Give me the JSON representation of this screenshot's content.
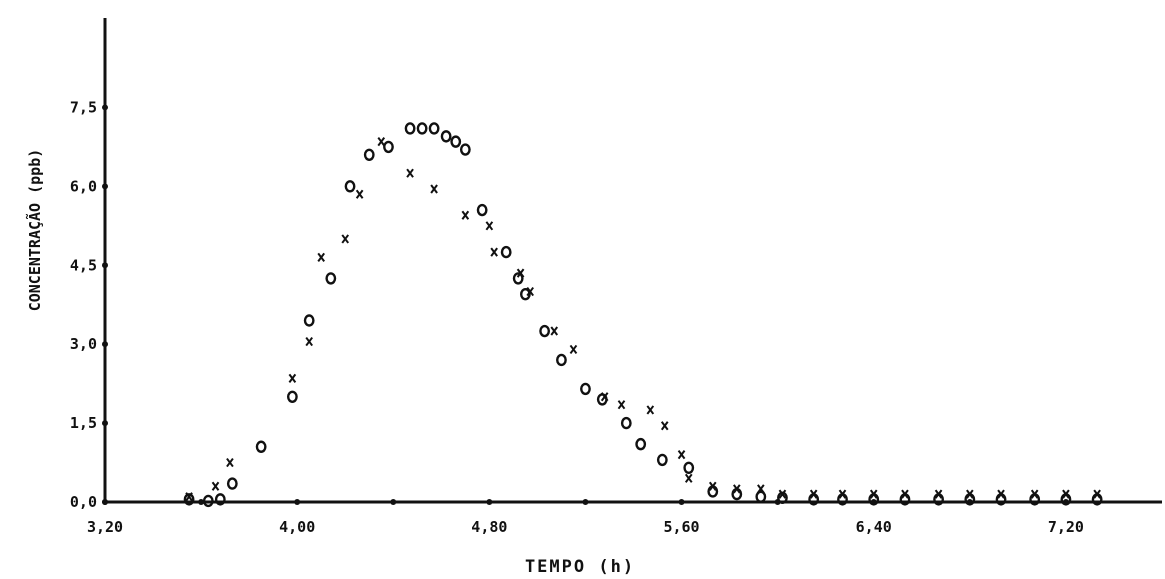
{
  "chart_data": {
    "type": "scatter",
    "title": "",
    "xlabel": "TEMPO (h)",
    "ylabel": "CONCENTRAÇÃO (ppb)",
    "xlim": [
      3.2,
      7.6
    ],
    "ylim": [
      0,
      9.2
    ],
    "x_ticks": [
      3.2,
      3.6,
      4.0,
      4.4,
      4.8,
      5.2,
      5.6,
      6.0,
      6.4,
      6.8,
      7.2
    ],
    "x_tick_labels": [
      "3,20",
      "4,00",
      "4,80",
      "5,60",
      "6,40",
      "7,20"
    ],
    "x_labeled_ticks": [
      3.2,
      4.0,
      4.8,
      5.6,
      6.4,
      7.2
    ],
    "y_ticks": [
      0.0,
      1.5,
      3.0,
      4.5,
      6.0,
      7.5
    ],
    "y_tick_labels": [
      "0,0",
      "1,5",
      "3,0",
      "4,5",
      "6,0",
      "7,5"
    ],
    "grid": false,
    "legend": "none",
    "series": [
      {
        "marker": "o",
        "points": [
          [
            3.55,
            0.05
          ],
          [
            3.63,
            0.02
          ],
          [
            3.68,
            0.05
          ],
          [
            3.73,
            0.35
          ],
          [
            3.85,
            1.05
          ],
          [
            3.98,
            2.0
          ],
          [
            4.05,
            3.45
          ],
          [
            4.14,
            4.25
          ],
          [
            4.22,
            6.0
          ],
          [
            4.3,
            6.6
          ],
          [
            4.38,
            6.75
          ],
          [
            4.47,
            7.1
          ],
          [
            4.52,
            7.1
          ],
          [
            4.57,
            7.1
          ],
          [
            4.62,
            6.95
          ],
          [
            4.66,
            6.85
          ],
          [
            4.7,
            6.7
          ],
          [
            4.77,
            5.55
          ],
          [
            4.87,
            4.75
          ],
          [
            4.92,
            4.25
          ],
          [
            4.95,
            3.95
          ],
          [
            5.03,
            3.25
          ],
          [
            5.1,
            2.7
          ],
          [
            5.2,
            2.15
          ],
          [
            5.27,
            1.95
          ],
          [
            5.37,
            1.5
          ],
          [
            5.43,
            1.1
          ],
          [
            5.52,
            0.8
          ],
          [
            5.63,
            0.65
          ],
          [
            5.73,
            0.2
          ],
          [
            5.83,
            0.15
          ],
          [
            5.93,
            0.1
          ],
          [
            6.02,
            0.08
          ],
          [
            6.15,
            0.05
          ],
          [
            6.27,
            0.05
          ],
          [
            6.4,
            0.05
          ],
          [
            6.53,
            0.05
          ],
          [
            6.67,
            0.05
          ],
          [
            6.8,
            0.05
          ],
          [
            6.93,
            0.05
          ],
          [
            7.07,
            0.05
          ],
          [
            7.2,
            0.05
          ],
          [
            7.33,
            0.05
          ]
        ]
      },
      {
        "marker": "x",
        "points": [
          [
            3.55,
            0.1
          ],
          [
            3.66,
            0.3
          ],
          [
            3.72,
            0.75
          ],
          [
            3.98,
            2.35
          ],
          [
            4.05,
            3.05
          ],
          [
            4.1,
            4.65
          ],
          [
            4.2,
            5.0
          ],
          [
            4.26,
            5.85
          ],
          [
            4.35,
            6.85
          ],
          [
            4.47,
            6.25
          ],
          [
            4.57,
            5.95
          ],
          [
            4.7,
            5.45
          ],
          [
            4.8,
            5.25
          ],
          [
            4.82,
            4.75
          ],
          [
            4.93,
            4.35
          ],
          [
            4.97,
            4.0
          ],
          [
            5.07,
            3.25
          ],
          [
            5.15,
            2.9
          ],
          [
            5.28,
            2.0
          ],
          [
            5.35,
            1.85
          ],
          [
            5.47,
            1.75
          ],
          [
            5.53,
            1.45
          ],
          [
            5.6,
            0.9
          ],
          [
            5.63,
            0.45
          ],
          [
            5.73,
            0.3
          ],
          [
            5.83,
            0.25
          ],
          [
            5.93,
            0.25
          ],
          [
            6.02,
            0.15
          ],
          [
            6.15,
            0.15
          ],
          [
            6.27,
            0.15
          ],
          [
            6.4,
            0.15
          ],
          [
            6.53,
            0.15
          ],
          [
            6.67,
            0.15
          ],
          [
            6.8,
            0.15
          ],
          [
            6.93,
            0.15
          ],
          [
            7.07,
            0.15
          ],
          [
            7.2,
            0.15
          ],
          [
            7.33,
            0.15
          ]
        ]
      }
    ]
  }
}
